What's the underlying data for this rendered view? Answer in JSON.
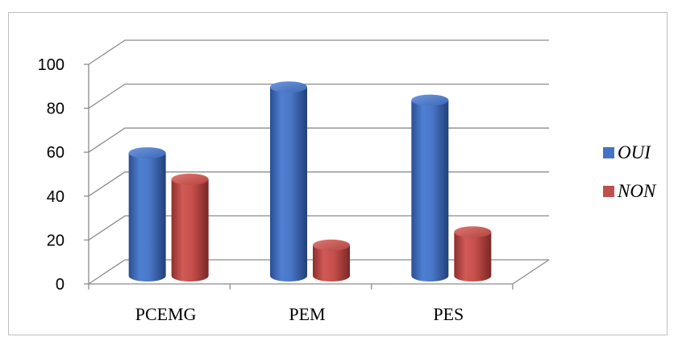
{
  "chart_data": {
    "type": "bar",
    "style": "3d-cylinder",
    "categories": [
      "PCEMG",
      "PEM",
      "PES"
    ],
    "series": [
      {
        "name": "OUI",
        "values": [
          56,
          86,
          80
        ],
        "color": "#4472c4"
      },
      {
        "name": "NON",
        "values": [
          44,
          14,
          20
        ],
        "color": "#c0504d"
      }
    ],
    "ylim": [
      0,
      100
    ],
    "yticks": [
      0,
      20,
      40,
      60,
      80,
      100
    ],
    "grid": true,
    "legend_position": "right",
    "title": "",
    "xlabel": "",
    "ylabel": ""
  }
}
